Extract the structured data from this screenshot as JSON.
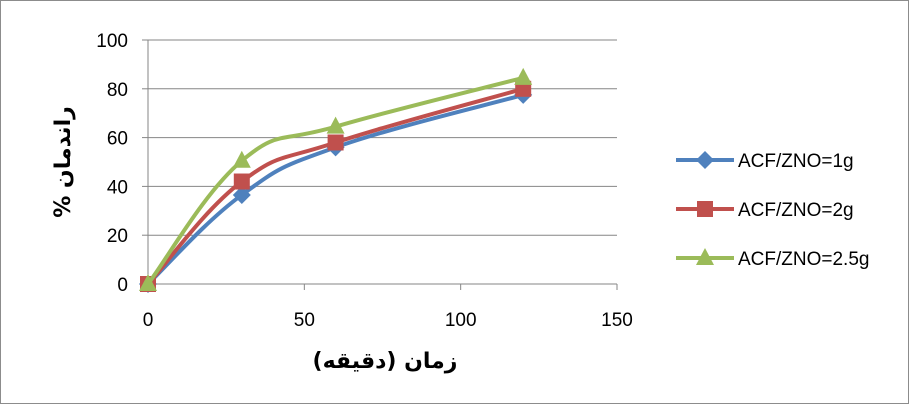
{
  "chart_data": {
    "type": "line",
    "xlabel": "زمان (دقیقه)",
    "ylabel": "راندمان %",
    "xlim": [
      0,
      150
    ],
    "ylim": [
      0,
      100
    ],
    "x_ticks": [
      "0",
      "50",
      "100",
      "150"
    ],
    "y_ticks": [
      "0",
      "20",
      "40",
      "60",
      "80",
      "100"
    ],
    "grid": "horizontal",
    "legend_position": "right",
    "x": [
      0,
      30,
      60,
      120
    ],
    "series": [
      {
        "name": "ACF/ZNO=1g",
        "marker": "diamond",
        "color": "#4f81bd",
        "values": [
          0,
          36.5,
          56,
          77.5
        ]
      },
      {
        "name": "ACF/ZNO=2g",
        "marker": "square",
        "color": "#c0504d",
        "values": [
          0,
          42,
          58,
          80
        ]
      },
      {
        "name": "ACF/ZNO=2.5g",
        "marker": "triangle",
        "color": "#9bbb59",
        "values": [
          0,
          50.5,
          64.5,
          84.5
        ]
      }
    ]
  }
}
